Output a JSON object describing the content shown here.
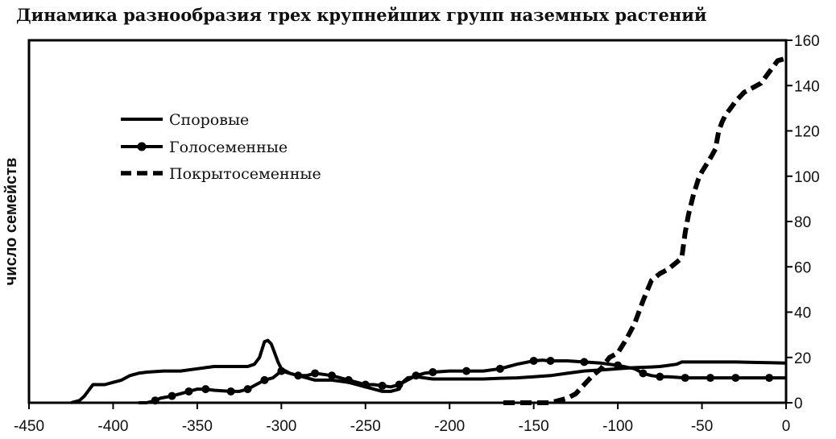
{
  "chart_data": {
    "type": "line",
    "title": "Динамика разнообразия трех крупнейших групп наземных растений",
    "xlabel": "",
    "ylabel": "число семейств",
    "xlim": [
      -450,
      0
    ],
    "ylim": [
      0,
      160
    ],
    "xticks": [
      -450,
      -400,
      -350,
      -300,
      -250,
      -200,
      -150,
      -100,
      -50,
      0
    ],
    "yticks": [
      0,
      20,
      40,
      60,
      80,
      100,
      120,
      140,
      160
    ],
    "y_axis_side": "right",
    "grid": false,
    "legend_position": "top-left",
    "series": [
      {
        "name": "Споровые",
        "style": "solid",
        "color": "#000000",
        "x": [
          -425,
          -420,
          -417,
          -414,
          -412,
          -405,
          -400,
          -395,
          -390,
          -385,
          -380,
          -370,
          -360,
          -350,
          -345,
          -340,
          -330,
          -320,
          -316,
          -313,
          -310,
          -308,
          -306,
          -304,
          -302,
          -300,
          -295,
          -290,
          -285,
          -280,
          -270,
          -260,
          -250,
          -245,
          -240,
          -235,
          -230,
          -228,
          -225,
          -220,
          -215,
          -210,
          -200,
          -190,
          -180,
          -170,
          -160,
          -150,
          -140,
          -130,
          -120,
          -110,
          -100,
          -90,
          -80,
          -75,
          -70,
          -65,
          -62,
          -55,
          -50,
          -40,
          -30,
          -20,
          -10,
          0
        ],
        "y": [
          0,
          1,
          3,
          6,
          8,
          8,
          9,
          10,
          12,
          13,
          13.5,
          14,
          14,
          15,
          15.5,
          16,
          16,
          16,
          17,
          20,
          27,
          27.5,
          26,
          22,
          18,
          15,
          13,
          12,
          11,
          10,
          10,
          9,
          7,
          6,
          5,
          5,
          6,
          9,
          11,
          11.5,
          11,
          10.5,
          10.5,
          10.5,
          10.5,
          10.8,
          11,
          11.5,
          12,
          13,
          14,
          14.5,
          15,
          15.5,
          15.8,
          16,
          16.5,
          17,
          18,
          18,
          18,
          18,
          18,
          17.8,
          17.7,
          17.5
        ]
      },
      {
        "name": "Голосеменные",
        "style": "solid-markers",
        "color": "#000000",
        "x": [
          -385,
          -380,
          -375,
          -372,
          -365,
          -360,
          -355,
          -350,
          -345,
          -340,
          -330,
          -325,
          -320,
          -315,
          -310,
          -305,
          -300,
          -295,
          -290,
          -285,
          -280,
          -275,
          -270,
          -265,
          -260,
          -255,
          -250,
          -245,
          -240,
          -235,
          -230,
          -225,
          -220,
          -215,
          -210,
          -200,
          -190,
          -180,
          -170,
          -160,
          -150,
          -145,
          -140,
          -130,
          -120,
          -110,
          -100,
          -90,
          -85,
          -80,
          -75,
          -70,
          -60,
          -50,
          -45,
          -40,
          -30,
          -20,
          -10,
          0
        ],
        "y": [
          0,
          0,
          1,
          2,
          3,
          4,
          5,
          6,
          6,
          5.5,
          5,
          5,
          6,
          8,
          10,
          11,
          14,
          13,
          12,
          12,
          13,
          12.5,
          12,
          11,
          10,
          9,
          8,
          8,
          7.5,
          7,
          8,
          10,
          12,
          13,
          13.5,
          14,
          14,
          14,
          15,
          17,
          18.5,
          18.8,
          18.5,
          18.5,
          18,
          17.5,
          16.5,
          15,
          13,
          12,
          11.5,
          11.5,
          11,
          11,
          11,
          11,
          11,
          11,
          11,
          11
        ]
      },
      {
        "name": "Покрытосеменные",
        "style": "dashed",
        "color": "#000000",
        "x": [
          -168,
          -160,
          -150,
          -140,
          -130,
          -125,
          -120,
          -115,
          -110,
          -105,
          -100,
          -95,
          -90,
          -85,
          -80,
          -75,
          -70,
          -65,
          -62,
          -60,
          -58,
          -55,
          -52,
          -50,
          -45,
          -42,
          -40,
          -38,
          -36,
          -33,
          -30,
          -25,
          -20,
          -15,
          -10,
          -5,
          0
        ],
        "y": [
          0,
          0,
          0,
          0,
          2,
          4,
          8,
          12,
          15,
          20,
          22,
          28,
          35,
          45,
          54,
          57,
          59,
          62,
          64,
          75,
          83,
          92,
          99,
          102,
          108,
          112,
          120,
          124,
          127,
          130,
          133,
          137,
          139,
          141,
          146,
          151,
          152
        ]
      }
    ]
  }
}
